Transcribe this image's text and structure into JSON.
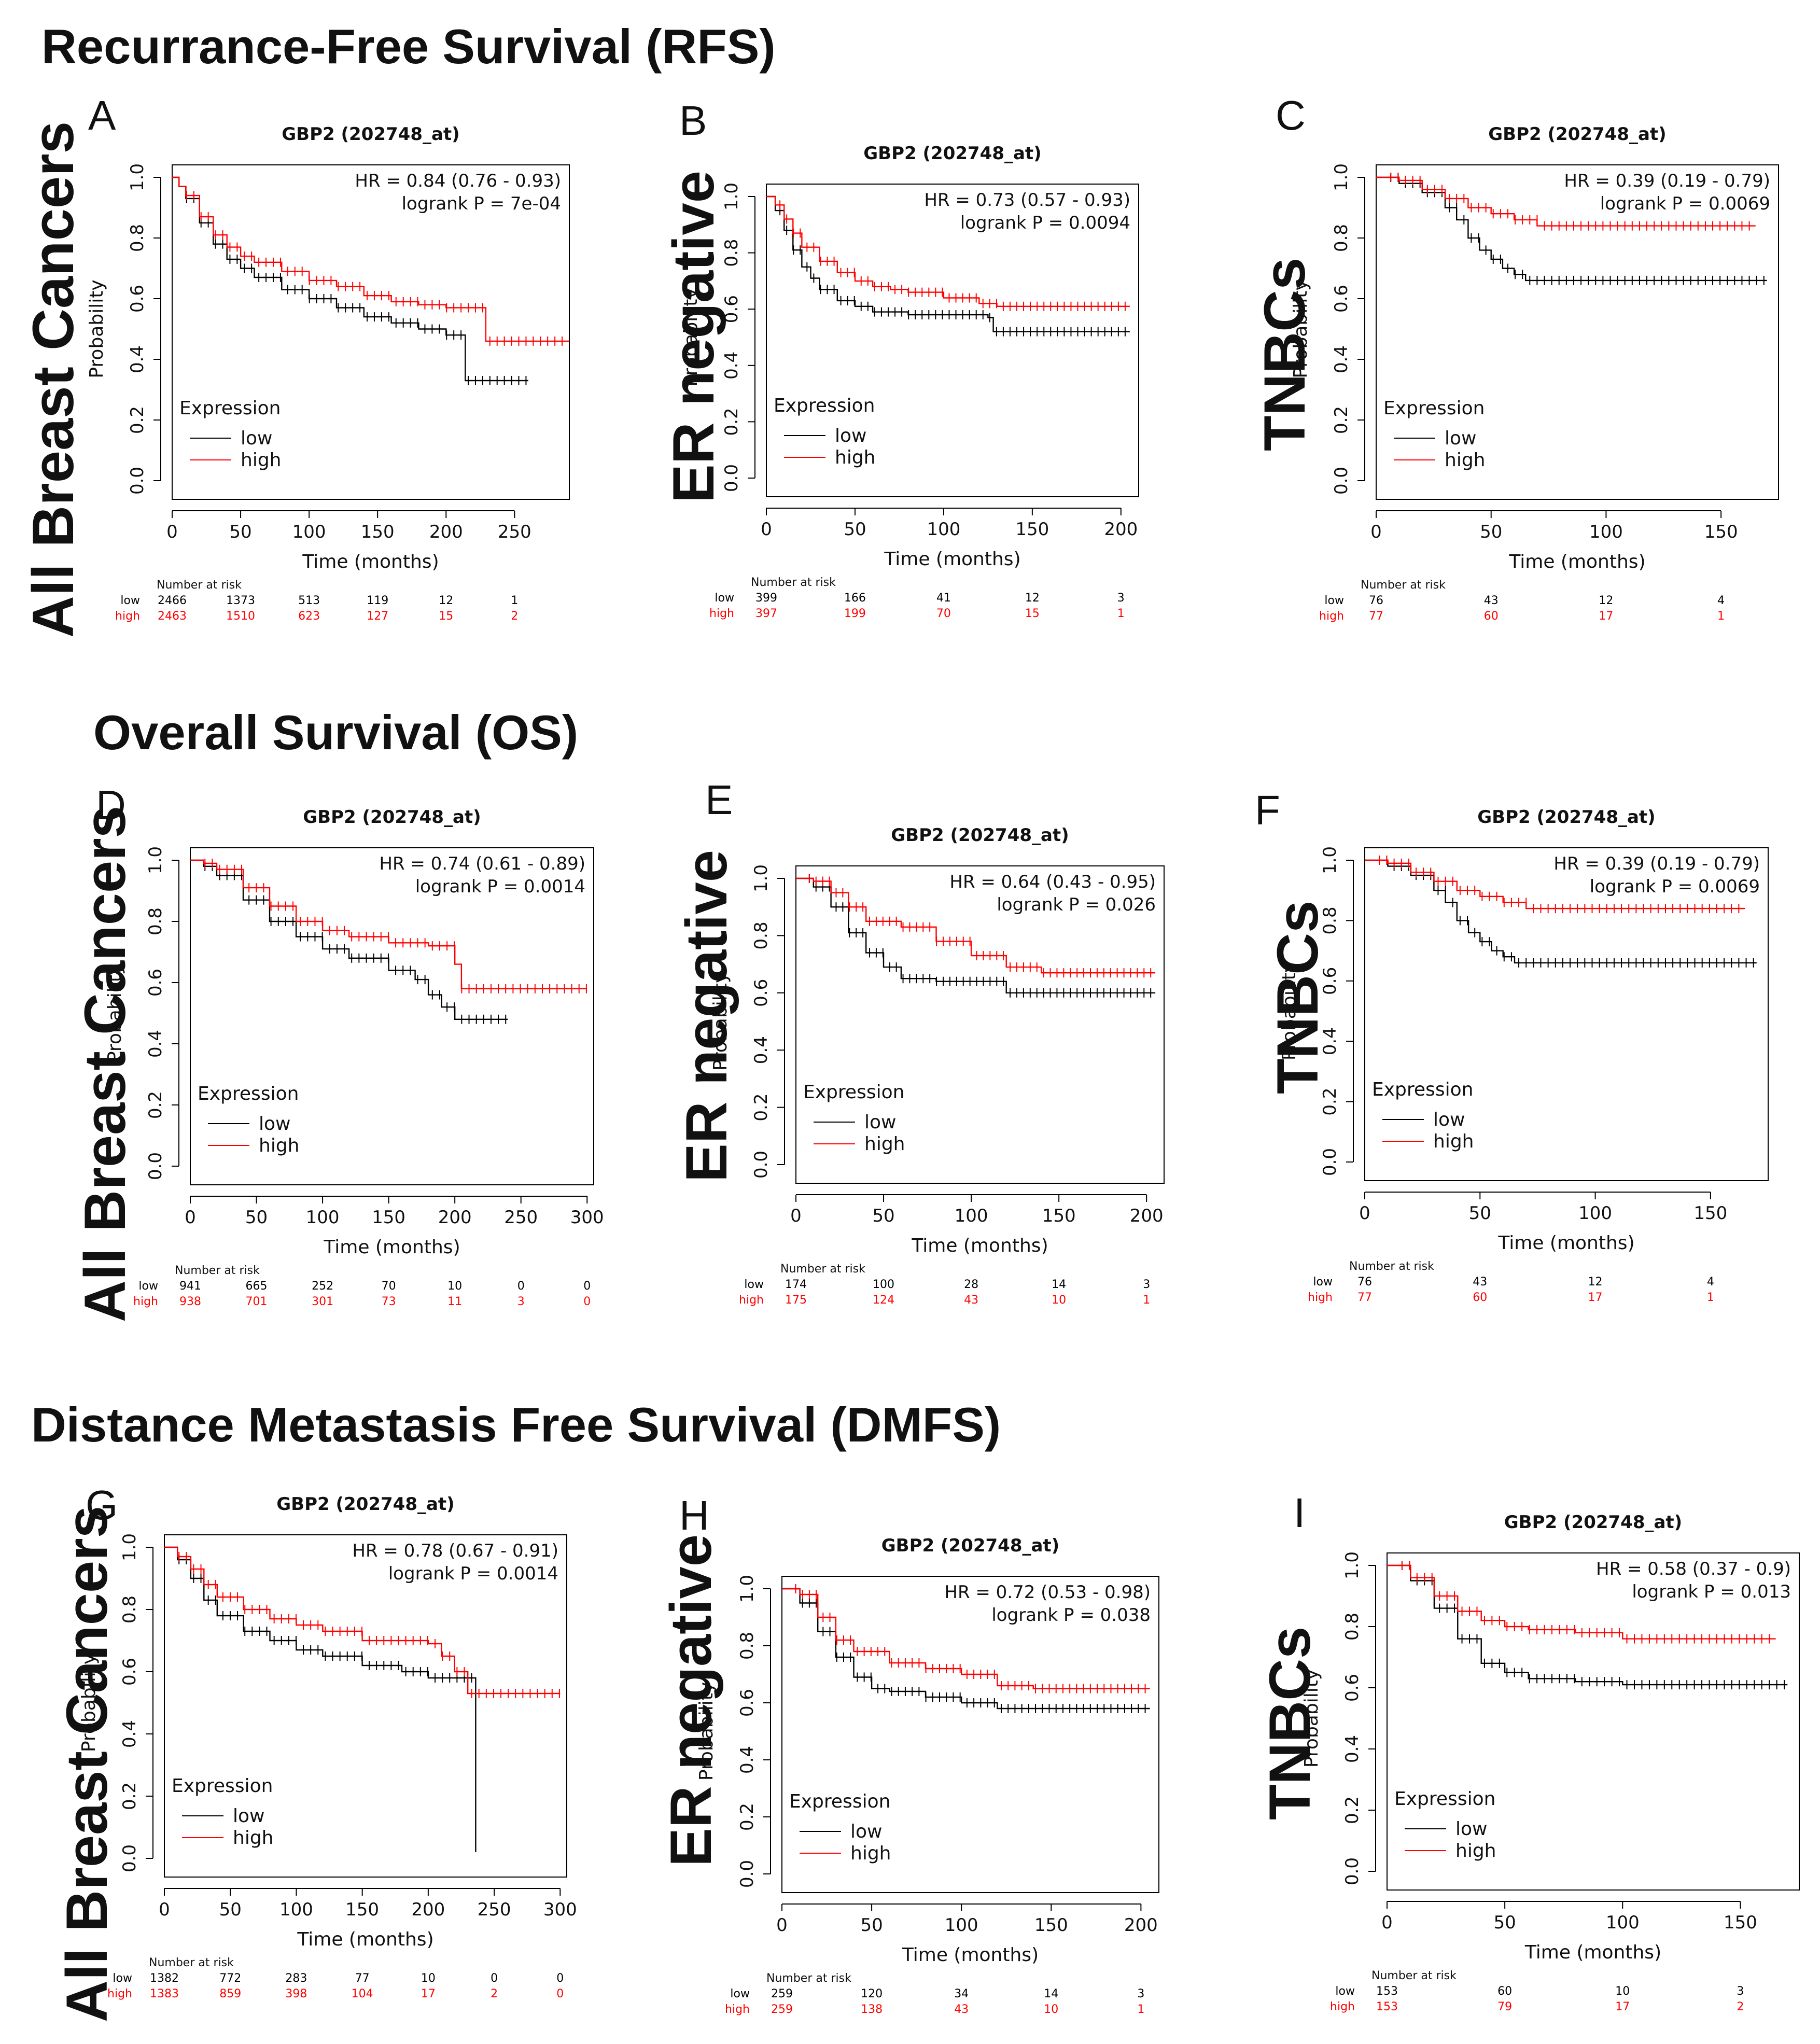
{
  "sections": [
    {
      "title": "Recurrance-Free Survival (RFS)"
    },
    {
      "title": "Overall Survival (OS)"
    },
    {
      "title": "Distance Metastasis Free Survival (DMFS)"
    }
  ],
  "colors": {
    "low": "#000000",
    "high": "#ff0000",
    "axis": "#000000"
  },
  "chart_data": [
    {
      "panel": "A",
      "type": "line",
      "section": 0,
      "row_label": "All Breast Cancers",
      "title": "GBP2 (202748_at)",
      "hr": "HR = 0.84 (0.76 - 0.93)",
      "logrank": "logrank P = 7e-04",
      "xlabel": "Time (months)",
      "ylabel": "Probability",
      "xticks": [
        0,
        50,
        100,
        150,
        200,
        250
      ],
      "xlim": [
        0,
        290
      ],
      "yticks": [
        "0.0",
        "0.2",
        "0.4",
        "0.6",
        "0.8",
        "1.0"
      ],
      "ylim": [
        0,
        1
      ],
      "legend": {
        "title": "Expression",
        "low": "low",
        "high": "high"
      },
      "risk_title": "Number at risk",
      "risk_low": [
        "2466",
        "1373",
        "513",
        "119",
        "12",
        "1"
      ],
      "risk_high": [
        "2463",
        "1510",
        "623",
        "127",
        "15",
        "2"
      ],
      "series": [
        {
          "name": "low",
          "x": [
            0,
            5,
            10,
            20,
            30,
            40,
            50,
            60,
            80,
            100,
            120,
            140,
            160,
            180,
            200,
            210,
            214,
            214,
            260
          ],
          "y": [
            1,
            0.97,
            0.93,
            0.85,
            0.78,
            0.73,
            0.7,
            0.67,
            0.63,
            0.6,
            0.57,
            0.54,
            0.52,
            0.5,
            0.48,
            0.48,
            0.48,
            0.33,
            0.33
          ]
        },
        {
          "name": "high",
          "x": [
            0,
            5,
            10,
            20,
            30,
            40,
            50,
            60,
            80,
            100,
            120,
            140,
            160,
            180,
            200,
            229,
            229,
            290
          ],
          "y": [
            1,
            0.97,
            0.94,
            0.87,
            0.81,
            0.77,
            0.74,
            0.72,
            0.69,
            0.66,
            0.64,
            0.61,
            0.59,
            0.58,
            0.57,
            0.57,
            0.46,
            0.46
          ]
        }
      ]
    },
    {
      "panel": "B",
      "type": "line",
      "section": 0,
      "row_label": "ER negative",
      "title": "GBP2 (202748_at)",
      "hr": "HR = 0.73 (0.57 - 0.93)",
      "logrank": "logrank P = 0.0094",
      "xlabel": "Time (months)",
      "ylabel": "Probability",
      "xticks": [
        0,
        50,
        100,
        150,
        200
      ],
      "xlim": [
        0,
        210
      ],
      "yticks": [
        "0.0",
        "0.2",
        "0.4",
        "0.6",
        "0.8",
        "1.0"
      ],
      "ylim": [
        0,
        1
      ],
      "legend": {
        "title": "Expression",
        "low": "low",
        "high": "high"
      },
      "risk_title": "Number at risk",
      "risk_low": [
        "399",
        "166",
        "41",
        "12",
        "3"
      ],
      "risk_high": [
        "397",
        "199",
        "70",
        "15",
        "1"
      ],
      "series": [
        {
          "name": "low",
          "x": [
            0,
            5,
            10,
            15,
            20,
            25,
            30,
            40,
            50,
            60,
            80,
            100,
            125,
            128,
            205
          ],
          "y": [
            1,
            0.95,
            0.88,
            0.81,
            0.75,
            0.71,
            0.67,
            0.63,
            0.61,
            0.59,
            0.58,
            0.58,
            0.57,
            0.52,
            0.52
          ]
        },
        {
          "name": "high",
          "x": [
            0,
            5,
            10,
            15,
            20,
            30,
            40,
            50,
            60,
            70,
            80,
            100,
            120,
            130,
            205
          ],
          "y": [
            1,
            0.97,
            0.92,
            0.87,
            0.82,
            0.77,
            0.73,
            0.7,
            0.68,
            0.67,
            0.66,
            0.64,
            0.62,
            0.61,
            0.61
          ]
        }
      ]
    },
    {
      "panel": "C",
      "type": "line",
      "section": 0,
      "row_label": "TNBCs",
      "title": "GBP2 (202748_at)",
      "hr": "HR = 0.39 (0.19 - 0.79)",
      "logrank": "logrank P = 0.0069",
      "xlabel": "Time (months)",
      "ylabel": "Probability",
      "xticks": [
        0,
        50,
        100,
        150
      ],
      "xlim": [
        0,
        175
      ],
      "yticks": [
        "0.0",
        "0.2",
        "0.4",
        "0.6",
        "0.8",
        "1.0"
      ],
      "ylim": [
        0,
        1
      ],
      "legend": {
        "title": "Expression",
        "low": "low",
        "high": "high"
      },
      "risk_title": "Number at risk",
      "risk_low": [
        "76",
        "43",
        "12",
        "4"
      ],
      "risk_high": [
        "77",
        "60",
        "17",
        "1"
      ],
      "series": [
        {
          "name": "low",
          "x": [
            0,
            10,
            20,
            30,
            35,
            40,
            45,
            50,
            55,
            60,
            65,
            170
          ],
          "y": [
            1,
            0.98,
            0.95,
            0.9,
            0.86,
            0.8,
            0.76,
            0.73,
            0.7,
            0.68,
            0.66,
            0.66
          ]
        },
        {
          "name": "high",
          "x": [
            0,
            10,
            20,
            30,
            40,
            50,
            60,
            70,
            165
          ],
          "y": [
            1,
            0.99,
            0.96,
            0.93,
            0.9,
            0.88,
            0.86,
            0.84,
            0.84
          ]
        }
      ]
    },
    {
      "panel": "D",
      "type": "line",
      "section": 1,
      "row_label": "All Breast Cancers",
      "title": "GBP2 (202748_at)",
      "hr": "HR = 0.74 (0.61 - 0.89)",
      "logrank": "logrank P = 0.0014",
      "xlabel": "Time (months)",
      "ylabel": "Probability",
      "xticks": [
        0,
        50,
        100,
        150,
        200,
        250,
        300
      ],
      "xlim": [
        0,
        305
      ],
      "yticks": [
        "0.0",
        "0.2",
        "0.4",
        "0.6",
        "0.8",
        "1.0"
      ],
      "ylim": [
        0,
        1
      ],
      "legend": {
        "title": "Expression",
        "low": "low",
        "high": "high"
      },
      "risk_title": "Number at risk",
      "risk_low": [
        "941",
        "665",
        "252",
        "70",
        "10",
        "0",
        "0"
      ],
      "risk_high": [
        "938",
        "701",
        "301",
        "73",
        "11",
        "3",
        "0"
      ],
      "series": [
        {
          "name": "low",
          "x": [
            0,
            10,
            20,
            40,
            60,
            80,
            100,
            120,
            150,
            170,
            180,
            190,
            200,
            240
          ],
          "y": [
            1,
            0.98,
            0.95,
            0.87,
            0.8,
            0.75,
            0.71,
            0.68,
            0.64,
            0.61,
            0.56,
            0.52,
            0.48,
            0.48
          ]
        },
        {
          "name": "high",
          "x": [
            0,
            10,
            20,
            40,
            60,
            80,
            100,
            120,
            150,
            180,
            200,
            205,
            300
          ],
          "y": [
            1,
            0.99,
            0.97,
            0.91,
            0.85,
            0.8,
            0.77,
            0.75,
            0.73,
            0.72,
            0.66,
            0.58,
            0.58
          ]
        }
      ]
    },
    {
      "panel": "E",
      "type": "line",
      "section": 1,
      "row_label": "ER negative",
      "title": "GBP2 (202748_at)",
      "hr": "HR = 0.64 (0.43 - 0.95)",
      "logrank": "logrank P = 0.026",
      "xlabel": "Time (months)",
      "ylabel": "Probability",
      "xticks": [
        0,
        50,
        100,
        150,
        200
      ],
      "xlim": [
        0,
        210
      ],
      "yticks": [
        "0.0",
        "0.2",
        "0.4",
        "0.6",
        "0.8",
        "1.0"
      ],
      "ylim": [
        0,
        1
      ],
      "legend": {
        "title": "Expression",
        "low": "low",
        "high": "high"
      },
      "risk_title": "Number at risk",
      "risk_low": [
        "174",
        "100",
        "28",
        "14",
        "3"
      ],
      "risk_high": [
        "175",
        "124",
        "43",
        "10",
        "1"
      ],
      "series": [
        {
          "name": "low",
          "x": [
            0,
            10,
            20,
            30,
            40,
            50,
            60,
            80,
            100,
            118,
            120,
            205
          ],
          "y": [
            1,
            0.97,
            0.9,
            0.81,
            0.74,
            0.69,
            0.65,
            0.64,
            0.64,
            0.64,
            0.6,
            0.6
          ]
        },
        {
          "name": "high",
          "x": [
            0,
            10,
            20,
            30,
            40,
            60,
            80,
            100,
            120,
            140,
            205
          ],
          "y": [
            1,
            0.99,
            0.95,
            0.9,
            0.85,
            0.83,
            0.78,
            0.73,
            0.69,
            0.67,
            0.67
          ]
        }
      ]
    },
    {
      "panel": "F",
      "type": "line",
      "section": 1,
      "row_label": "TNBCs",
      "title": "GBP2 (202748_at)",
      "hr": "HR = 0.39 (0.19 - 0.79)",
      "logrank": "logrank P = 0.0069",
      "xlabel": "Time (months)",
      "ylabel": "Probability",
      "xticks": [
        0,
        50,
        100,
        150
      ],
      "xlim": [
        0,
        175
      ],
      "yticks": [
        "0.0",
        "0.2",
        "0.4",
        "0.6",
        "0.8",
        "1.0"
      ],
      "ylim": [
        0,
        1
      ],
      "legend": {
        "title": "Expression",
        "low": "low",
        "high": "high"
      },
      "risk_title": "Number at risk",
      "risk_low": [
        "76",
        "43",
        "12",
        "4"
      ],
      "risk_high": [
        "77",
        "60",
        "17",
        "1"
      ],
      "series": [
        {
          "name": "low",
          "x": [
            0,
            10,
            20,
            30,
            35,
            40,
            45,
            50,
            55,
            60,
            65,
            170
          ],
          "y": [
            1,
            0.98,
            0.95,
            0.9,
            0.86,
            0.8,
            0.76,
            0.73,
            0.7,
            0.68,
            0.66,
            0.66
          ]
        },
        {
          "name": "high",
          "x": [
            0,
            10,
            20,
            30,
            40,
            50,
            60,
            70,
            165
          ],
          "y": [
            1,
            0.99,
            0.96,
            0.93,
            0.9,
            0.88,
            0.86,
            0.84,
            0.84
          ]
        }
      ]
    },
    {
      "panel": "G",
      "type": "line",
      "section": 2,
      "row_label": "All Breast Cancers",
      "title": "GBP2 (202748_at)",
      "hr": "HR = 0.78 (0.67 - 0.91)",
      "logrank": "logrank P = 0.0014",
      "xlabel": "Time (months)",
      "ylabel": "Probability",
      "xticks": [
        0,
        50,
        100,
        150,
        200,
        250,
        300
      ],
      "xlim": [
        0,
        305
      ],
      "yticks": [
        "0.0",
        "0.2",
        "0.4",
        "0.6",
        "0.8",
        "1.0"
      ],
      "ylim": [
        0,
        1
      ],
      "legend": {
        "title": "Expression",
        "low": "low",
        "high": "high"
      },
      "risk_title": "Number at risk",
      "risk_low": [
        "1382",
        "772",
        "283",
        "77",
        "10",
        "0",
        "0"
      ],
      "risk_high": [
        "1383",
        "859",
        "398",
        "104",
        "17",
        "2",
        "0"
      ],
      "series": [
        {
          "name": "low",
          "x": [
            0,
            10,
            20,
            30,
            40,
            60,
            80,
            100,
            120,
            150,
            180,
            200,
            230,
            236,
            236
          ],
          "y": [
            1,
            0.96,
            0.9,
            0.83,
            0.78,
            0.73,
            0.7,
            0.67,
            0.65,
            0.62,
            0.6,
            0.58,
            0.58,
            0.58,
            0.02
          ]
        },
        {
          "name": "high",
          "x": [
            0,
            10,
            20,
            30,
            40,
            60,
            80,
            100,
            120,
            150,
            200,
            210,
            220,
            230,
            300
          ],
          "y": [
            1,
            0.97,
            0.93,
            0.88,
            0.84,
            0.8,
            0.77,
            0.75,
            0.73,
            0.7,
            0.69,
            0.65,
            0.6,
            0.53,
            0.53
          ]
        }
      ]
    },
    {
      "panel": "H",
      "type": "line",
      "section": 2,
      "row_label": "ER negative",
      "title": "GBP2 (202748_at)",
      "hr": "HR = 0.72 (0.53 - 0.98)",
      "logrank": "logrank P = 0.038",
      "xlabel": "Time (months)",
      "ylabel": "Probability",
      "xticks": [
        0,
        50,
        100,
        150,
        200
      ],
      "xlim": [
        0,
        210
      ],
      "yticks": [
        "0.0",
        "0.2",
        "0.4",
        "0.6",
        "0.8",
        "1.0"
      ],
      "ylim": [
        0,
        1
      ],
      "legend": {
        "title": "Expression",
        "low": "low",
        "high": "high"
      },
      "risk_title": "Number at risk",
      "risk_low": [
        "259",
        "120",
        "34",
        "14",
        "3"
      ],
      "risk_high": [
        "259",
        "138",
        "43",
        "10",
        "1"
      ],
      "series": [
        {
          "name": "low",
          "x": [
            0,
            10,
            20,
            30,
            40,
            50,
            60,
            80,
            100,
            120,
            205
          ],
          "y": [
            1,
            0.95,
            0.85,
            0.76,
            0.69,
            0.65,
            0.64,
            0.62,
            0.6,
            0.58,
            0.58
          ]
        },
        {
          "name": "high",
          "x": [
            0,
            10,
            20,
            30,
            40,
            60,
            80,
            100,
            120,
            140,
            205
          ],
          "y": [
            1,
            0.98,
            0.9,
            0.82,
            0.78,
            0.74,
            0.72,
            0.7,
            0.66,
            0.65,
            0.65
          ]
        }
      ]
    },
    {
      "panel": "I",
      "type": "line",
      "section": 2,
      "row_label": "TNBCs",
      "title": "GBP2 (202748_at)",
      "hr": "HR = 0.58 (0.37 - 0.9)",
      "logrank": "logrank P = 0.013",
      "xlabel": "Time (months)",
      "ylabel": "Probability",
      "xticks": [
        0,
        50,
        100,
        150
      ],
      "xlim": [
        0,
        175
      ],
      "yticks": [
        "0.0",
        "0.2",
        "0.4",
        "0.6",
        "0.8",
        "1.0"
      ],
      "ylim": [
        0,
        1
      ],
      "legend": {
        "title": "Expression",
        "low": "low",
        "high": "high"
      },
      "risk_title": "Number at risk",
      "risk_low": [
        "153",
        "60",
        "10",
        "3"
      ],
      "risk_high": [
        "153",
        "79",
        "17",
        "2"
      ],
      "series": [
        {
          "name": "low",
          "x": [
            0,
            10,
            20,
            30,
            40,
            50,
            60,
            80,
            100,
            170
          ],
          "y": [
            1,
            0.95,
            0.86,
            0.76,
            0.68,
            0.65,
            0.63,
            0.62,
            0.61,
            0.61
          ]
        },
        {
          "name": "high",
          "x": [
            0,
            10,
            20,
            30,
            40,
            50,
            60,
            80,
            100,
            165
          ],
          "y": [
            1,
            0.96,
            0.9,
            0.85,
            0.82,
            0.8,
            0.79,
            0.78,
            0.76,
            0.76
          ]
        }
      ]
    }
  ]
}
